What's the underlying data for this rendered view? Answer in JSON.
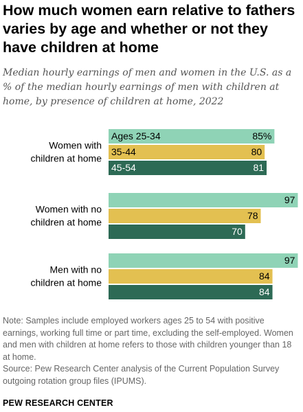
{
  "title": "How much women earn relative to fathers varies by age and whether or not they have children at home",
  "subtitle": "Median hourly earnings of men and women in the U.S. as a % of the median hourly earnings of men with children at home, by presence of children at home, 2022",
  "notes": {
    "note": "Note: Samples include employed workers ages 25 to 54 with positive earnings, working full time or part time, excluding the self-employed. Women and men with children at home refers to those with children younger than 18 at home.",
    "source": "Source: Pew Research Center analysis of the Current Population Survey outgoing rotation group files (IPUMS)."
  },
  "brand": "PEW RESEARCH CENTER",
  "colors": {
    "ages_25_34": "#8fd3b6",
    "ages_35_44": "#e3c051",
    "ages_45_54": "#2d6a55",
    "text_dark": "#000000",
    "text_light": "#ffffff"
  },
  "chart_data": {
    "type": "bar",
    "orientation": "horizontal",
    "groups": [
      {
        "label": "Women with children at home",
        "values": [
          85,
          80,
          81
        ],
        "value_labels": [
          "85%",
          "80",
          "81"
        ]
      },
      {
        "label": "Women with no children at home",
        "values": [
          97,
          78,
          70
        ],
        "value_labels": [
          "97",
          "78",
          "70"
        ]
      },
      {
        "label": "Men with no children at home",
        "values": [
          97,
          84,
          84
        ],
        "value_labels": [
          "97",
          "84",
          "84"
        ]
      }
    ],
    "series": [
      {
        "name": "Ages 25-34"
      },
      {
        "name": "35-44"
      },
      {
        "name": "45-54"
      }
    ],
    "xlim": [
      0,
      100
    ],
    "grid": false
  }
}
